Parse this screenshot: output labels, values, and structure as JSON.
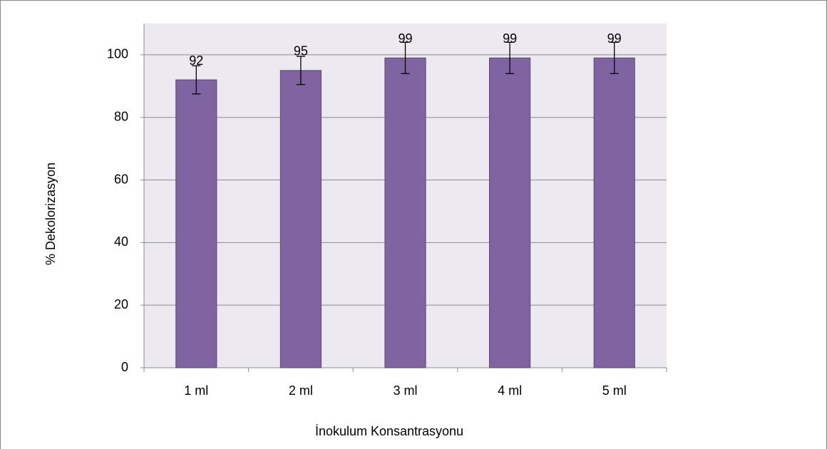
{
  "chart_data": {
    "type": "bar",
    "categories": [
      "1 ml",
      "2 ml",
      "3 ml",
      "4 ml",
      "5 ml"
    ],
    "values": [
      92,
      95,
      99,
      99,
      99
    ],
    "errors": [
      4.5,
      4.5,
      5,
      5,
      5
    ],
    "color": "#8064a2",
    "ylim": [
      0,
      110
    ],
    "yticks": [
      0,
      20,
      40,
      60,
      80,
      100
    ],
    "grid": true,
    "xlabel": "İnokulum Konsantrasyonu",
    "ylabel": "% Dekolorizasyon"
  }
}
